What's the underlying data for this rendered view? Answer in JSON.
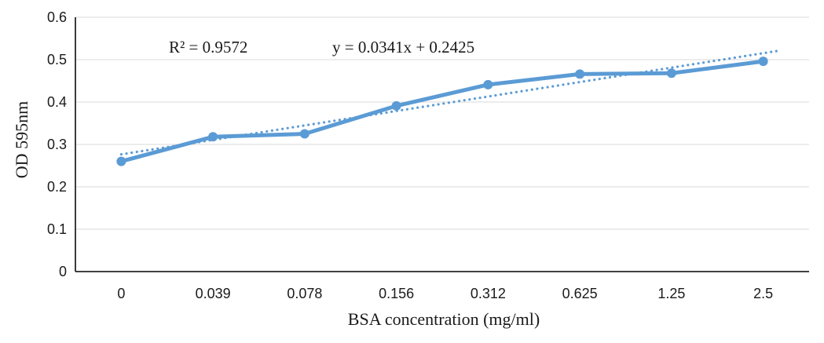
{
  "chart_data": {
    "type": "line",
    "title": "",
    "categories": [
      "0",
      "0.039",
      "0.078",
      "0.156",
      "0.312",
      "0.625",
      "1.25",
      "2.5"
    ],
    "series": [
      {
        "name": "OD 595nm",
        "values": [
          0.26,
          0.318,
          0.325,
          0.391,
          0.441,
          0.466,
          0.468,
          0.496
        ]
      }
    ],
    "xlabel": "BSA concentration (mg/ml)",
    "ylabel": "OD 595nm",
    "ylim": [
      0,
      0.6
    ],
    "y_ticks": [
      0,
      0.1,
      0.2,
      0.3,
      0.4,
      0.5,
      0.6
    ],
    "y_tick_labels": [
      "0",
      "0.1",
      "0.2",
      "0.3",
      "0.4",
      "0.5",
      "0.6"
    ],
    "grid": true,
    "legend": "none",
    "annotations": {
      "r_squared": "R² = 0.9572",
      "equation": "y = 0.0341x + 0.2425"
    },
    "trendline": {
      "type": "linear",
      "slope": 0.0341,
      "intercept": 0.2425,
      "x_is_category_index_1_based": true,
      "style": "dotted"
    },
    "colors": {
      "series": "#5B9BD5",
      "gridline": "#D9D9D9",
      "axis": "#262626",
      "text": "#1A1A1A"
    }
  }
}
